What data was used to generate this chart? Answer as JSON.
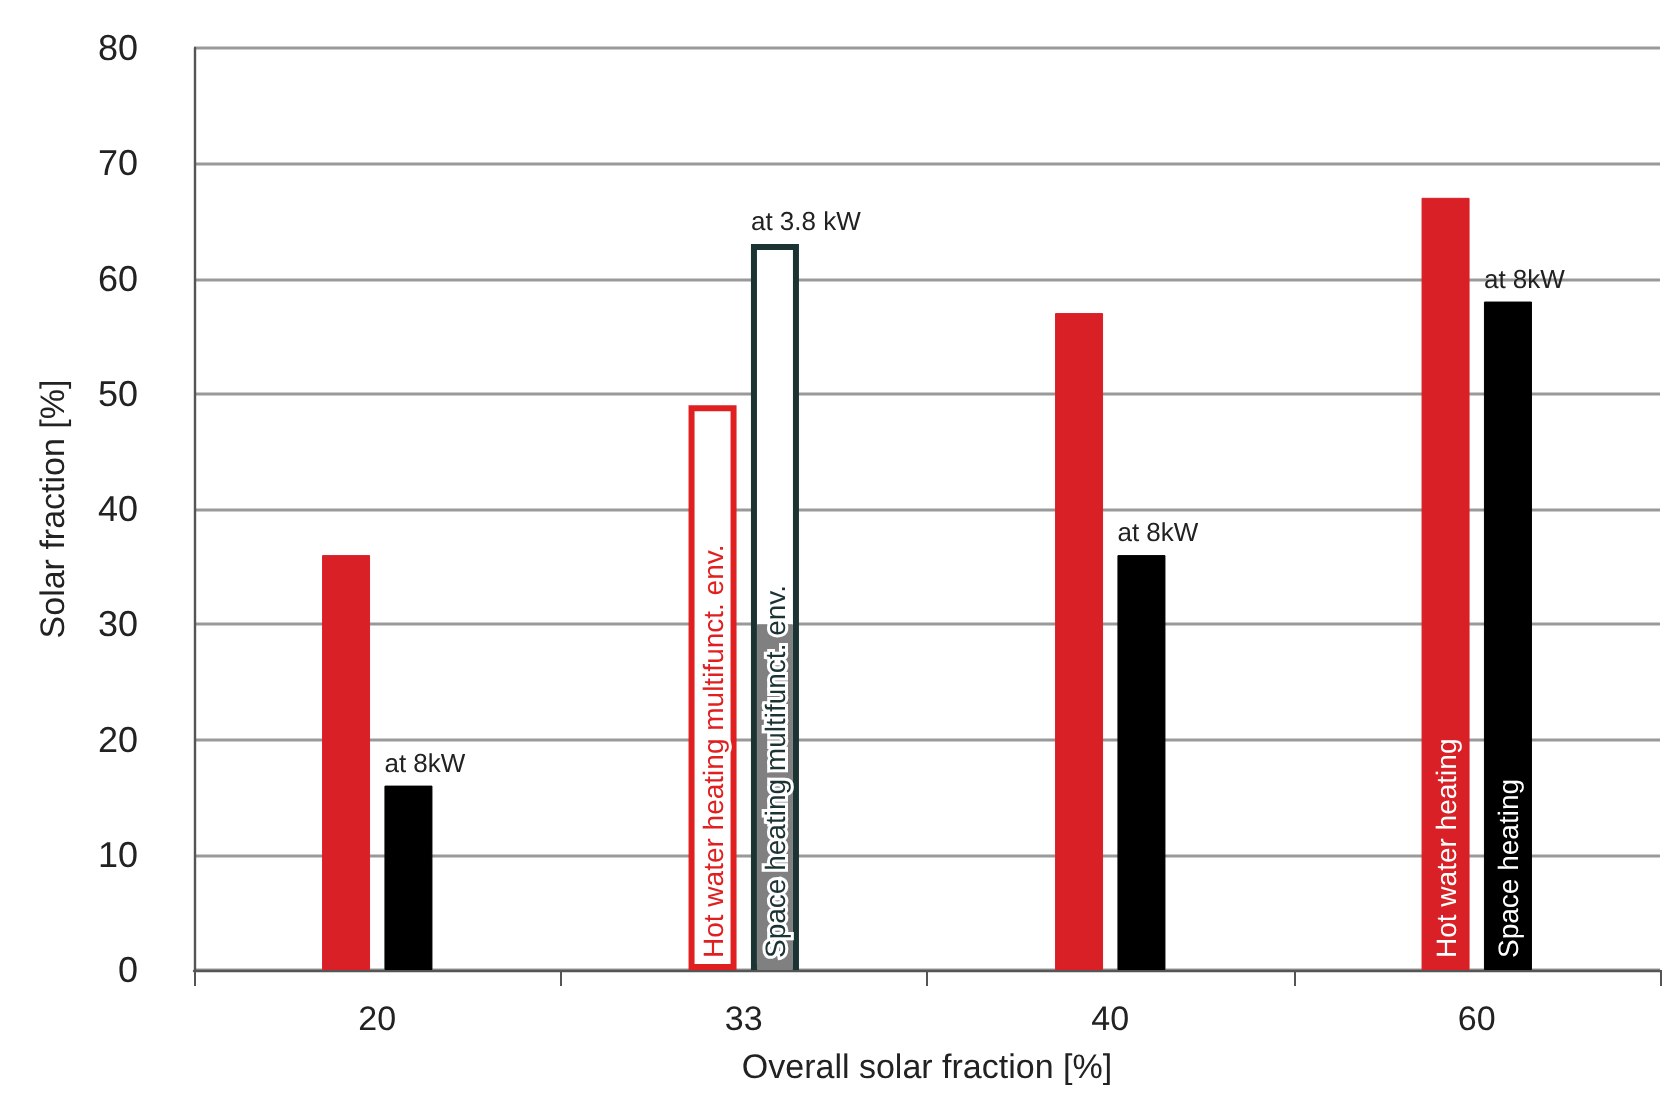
{
  "chart_data": {
    "type": "bar",
    "xlabel": "Overall solar fraction [%]",
    "ylabel": "Solar fraction [%]",
    "categories": [
      "20",
      "33",
      "40",
      "60"
    ],
    "series": [
      {
        "name": "Hot water heating",
        "color": "#d92027",
        "values": [
          36,
          null,
          57,
          67
        ]
      },
      {
        "name": "Space heating",
        "color": "#000000",
        "values": [
          16,
          null,
          36,
          58
        ]
      },
      {
        "name": "Hot water heating multifunct. env.",
        "color": "#e02020",
        "colors": [
          null,
          "#ffffff",
          null,
          null
        ],
        "values": [
          null,
          49,
          null,
          null
        ]
      },
      {
        "name": "Space heating multifunct. env.",
        "color": "#1c3333",
        "colors": [
          null,
          "#ffffff",
          null,
          null
        ],
        "values": [
          null,
          63,
          null,
          null
        ]
      },
      {
        "color": "#808080",
        "values": [
          null,
          30,
          null,
          null
        ]
      }
    ],
    "ylim": [
      0,
      80
    ],
    "yticks": [
      0,
      10,
      20,
      30,
      40,
      50,
      60,
      70,
      80
    ],
    "grid": "y",
    "annotations": [
      {
        "text": "at 8kW",
        "x": "20",
        "y": 16
      },
      "at 3.8 kW",
      {
        "text": "at 8kW",
        "x": "40",
        "y": 36
      },
      {
        "text": "at 8kW",
        "x": "60",
        "y": 58
      }
    ]
  }
}
